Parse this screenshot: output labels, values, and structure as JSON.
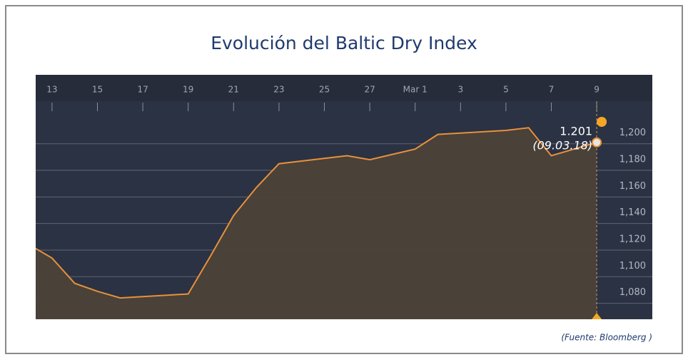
{
  "chart_data": {
    "type": "area",
    "title": "Evolución del Baltic Dry Index",
    "source": "(Fuente: Bloomberg )",
    "x": [
      12,
      13,
      14,
      15,
      16,
      19,
      20,
      21,
      22,
      23,
      26,
      27,
      28,
      29,
      30,
      33,
      34,
      35,
      36,
      37
    ],
    "values": [
      1124,
      1114,
      1095,
      1089,
      1084,
      1087,
      1116,
      1146,
      1167,
      1185,
      1191,
      1188,
      1192,
      1196,
      1207,
      1210,
      1212,
      1191,
      1196,
      1201
    ],
    "color": "#e8913a",
    "annotation": {
      "value_label": "1.201",
      "date_label": "(09.03.18)"
    },
    "xlim": [
      12.28,
      39.45
    ],
    "xticks": [
      13,
      15,
      17,
      19,
      21,
      23,
      25,
      27,
      {
        "value": 29,
        "label": "Mar 1"
      },
      {
        "value": 31,
        "label": "3"
      },
      {
        "value": 33,
        "label": "5"
      },
      {
        "value": 35,
        "label": "7"
      },
      {
        "value": 37,
        "label": "9"
      }
    ],
    "ylim": [
      1068,
      1232
    ],
    "yticks": [
      {
        "value": 1080,
        "label": "1,080"
      },
      {
        "value": 1100,
        "label": "1,100"
      },
      {
        "value": 1120,
        "label": "1,120"
      },
      {
        "value": 1140,
        "label": "1,140"
      },
      {
        "value": 1160,
        "label": "1,160"
      },
      {
        "value": 1180,
        "label": "1,180"
      },
      {
        "value": 1200,
        "label": "1,200"
      }
    ],
    "grid": true
  }
}
